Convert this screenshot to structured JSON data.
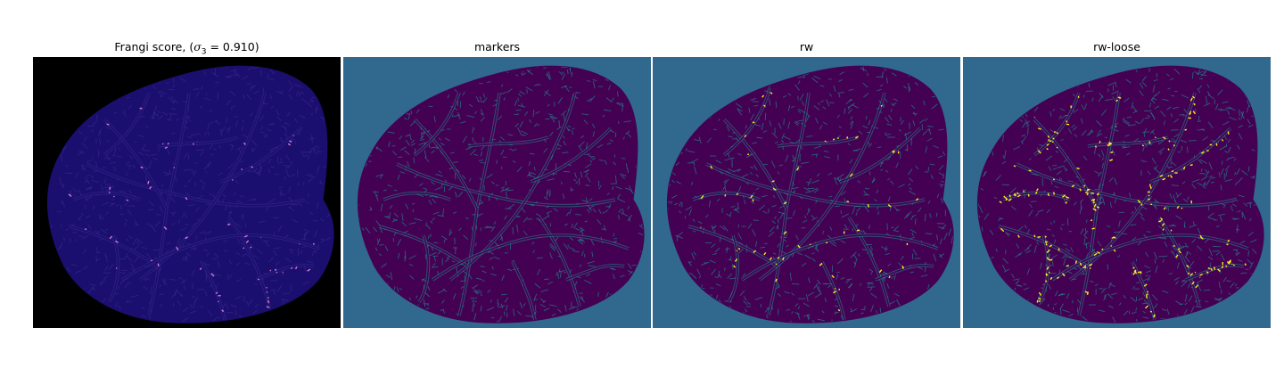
{
  "figure": {
    "panels": [
      {
        "id": "frangi",
        "title_prefix": "Frangi score, (",
        "title_sigma": "σ",
        "title_sub": "3",
        "title_suffix": " = 0.910)",
        "background": "#000000",
        "tissue": "#1a0f6e",
        "vessel": "#3b2a8f",
        "highlight": "#d87acb",
        "highlight_density": 0.1
      },
      {
        "id": "markers",
        "title": "markers",
        "background": "#31688e",
        "tissue": "#440154",
        "vessel": "#21918c",
        "highlight": "#21918c",
        "highlight_density": 0.0
      },
      {
        "id": "rw",
        "title": "rw",
        "background": "#31688e",
        "tissue": "#440154",
        "vessel": "#21918c",
        "highlight": "#fde725",
        "highlight_density": 0.1
      },
      {
        "id": "rw-loose",
        "title": "rw-loose",
        "background": "#31688e",
        "tissue": "#440154",
        "vessel": "#21918c",
        "highlight": "#fde725",
        "highlight_density": 0.35
      }
    ]
  }
}
